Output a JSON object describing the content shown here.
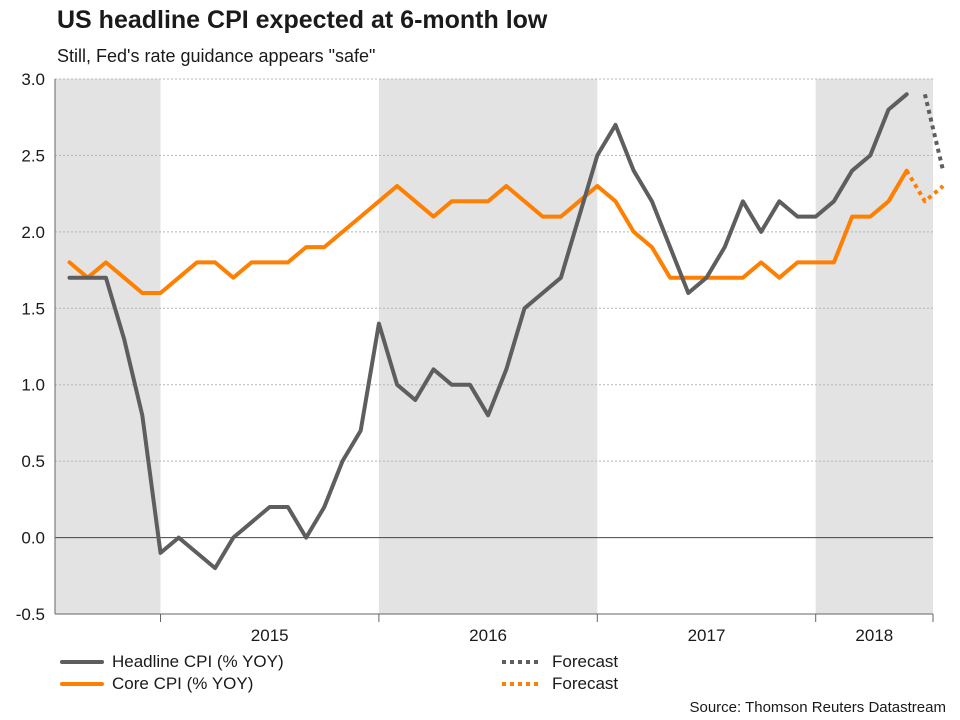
{
  "header": {
    "title": "US headline CPI expected at 6-month low",
    "subtitle": "Still, Fed's rate guidance appears \"safe\""
  },
  "source": "Source: Thomson Reuters Datastream",
  "colors": {
    "headline": "#5e5e5e",
    "core": "#ff7f00",
    "shade": "#e3e3e3",
    "grid": "#b4b4b4"
  },
  "chart_data": {
    "type": "line",
    "title": "US headline CPI expected at 6-month low",
    "subtitle": "Still, Fed's rate guidance appears \"safe\"",
    "xlabel": "",
    "ylabel": "",
    "ylim": [
      -0.5,
      3.0
    ],
    "yticks": [
      "3.0",
      "2.5",
      "2.0",
      "1.5",
      "1.0",
      "0.5",
      "0.0",
      "-0.5"
    ],
    "xtick_labels": [
      "2015",
      "2016",
      "2017",
      "2018"
    ],
    "grid": true,
    "legend_position": "bottom",
    "shaded_years": [
      "2014",
      "2016",
      "2018"
    ],
    "series": [
      {
        "name": "Headline CPI (% YOY)",
        "style": "solid",
        "x": [
          "2014-08",
          "2014-09",
          "2014-10",
          "2014-11",
          "2014-12",
          "2015-01",
          "2015-02",
          "2015-03",
          "2015-04",
          "2015-05",
          "2015-06",
          "2015-07",
          "2015-08",
          "2015-09",
          "2015-10",
          "2015-11",
          "2015-12",
          "2016-01",
          "2016-02",
          "2016-03",
          "2016-04",
          "2016-05",
          "2016-06",
          "2016-07",
          "2016-08",
          "2016-09",
          "2016-10",
          "2016-11",
          "2016-12",
          "2017-01",
          "2017-02",
          "2017-03",
          "2017-04",
          "2017-05",
          "2017-06",
          "2017-07",
          "2017-08",
          "2017-09",
          "2017-10",
          "2017-11",
          "2017-12",
          "2018-01",
          "2018-02",
          "2018-03",
          "2018-04",
          "2018-05",
          "2018-06"
        ],
        "values": [
          1.7,
          1.7,
          1.7,
          1.3,
          0.8,
          -0.1,
          0.0,
          -0.1,
          -0.2,
          0.0,
          0.1,
          0.2,
          0.2,
          0.0,
          0.2,
          0.5,
          0.7,
          1.4,
          1.0,
          0.9,
          1.1,
          1.0,
          1.0,
          0.8,
          1.1,
          1.5,
          1.6,
          1.7,
          2.1,
          2.5,
          2.7,
          2.4,
          2.2,
          1.9,
          1.6,
          1.7,
          1.9,
          2.2,
          2.0,
          2.2,
          2.1,
          2.1,
          2.2,
          2.4,
          2.5,
          2.8,
          2.9
        ]
      },
      {
        "name": "Headline CPI forecast",
        "legend": "Forecast",
        "style": "dotted",
        "x": [
          "2018-07",
          "2018-08"
        ],
        "values": [
          2.9,
          2.4
        ]
      },
      {
        "name": "Core CPI (% YOY)",
        "style": "solid",
        "x": [
          "2014-08",
          "2014-09",
          "2014-10",
          "2014-11",
          "2014-12",
          "2015-01",
          "2015-02",
          "2015-03",
          "2015-04",
          "2015-05",
          "2015-06",
          "2015-07",
          "2015-08",
          "2015-09",
          "2015-10",
          "2015-11",
          "2015-12",
          "2016-01",
          "2016-02",
          "2016-03",
          "2016-04",
          "2016-05",
          "2016-06",
          "2016-07",
          "2016-08",
          "2016-09",
          "2016-10",
          "2016-11",
          "2016-12",
          "2017-01",
          "2017-02",
          "2017-03",
          "2017-04",
          "2017-05",
          "2017-06",
          "2017-07",
          "2017-08",
          "2017-09",
          "2017-10",
          "2017-11",
          "2017-12",
          "2018-01",
          "2018-02",
          "2018-03",
          "2018-04",
          "2018-05",
          "2018-06"
        ],
        "values": [
          1.8,
          1.7,
          1.8,
          1.7,
          1.6,
          1.6,
          1.7,
          1.8,
          1.8,
          1.7,
          1.8,
          1.8,
          1.8,
          1.9,
          1.9,
          2.0,
          2.1,
          2.2,
          2.3,
          2.2,
          2.1,
          2.2,
          2.2,
          2.2,
          2.3,
          2.2,
          2.1,
          2.1,
          2.2,
          2.3,
          2.2,
          2.0,
          1.9,
          1.7,
          1.7,
          1.7,
          1.7,
          1.7,
          1.8,
          1.7,
          1.8,
          1.8,
          1.8,
          2.1,
          2.1,
          2.2,
          2.4
        ]
      },
      {
        "name": "Core CPI forecast",
        "legend": "Forecast",
        "style": "dotted",
        "x": [
          "2018-06",
          "2018-07",
          "2018-08"
        ],
        "values": [
          2.4,
          2.2,
          2.3
        ]
      }
    ]
  }
}
